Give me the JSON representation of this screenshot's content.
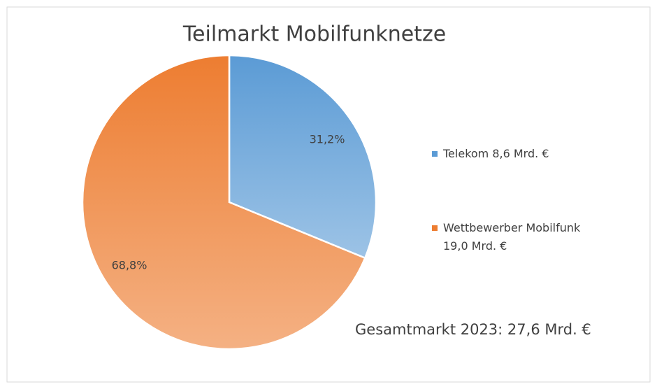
{
  "chart_data": {
    "type": "pie",
    "title": "Teilmarkt Mobilfunknetze",
    "categories": [
      "Telekom 8,6 Mrd. €",
      "Wettbewerber Mobilfunk 19,0 Mrd. €"
    ],
    "values": [
      31.2,
      68.8
    ],
    "value_labels": [
      "31,2%",
      "68,8%"
    ],
    "colors": [
      "#5b9bd5",
      "#ed7d31"
    ],
    "annotation": "Gesamtmarkt 2023: 27,6 Mrd. €"
  }
}
